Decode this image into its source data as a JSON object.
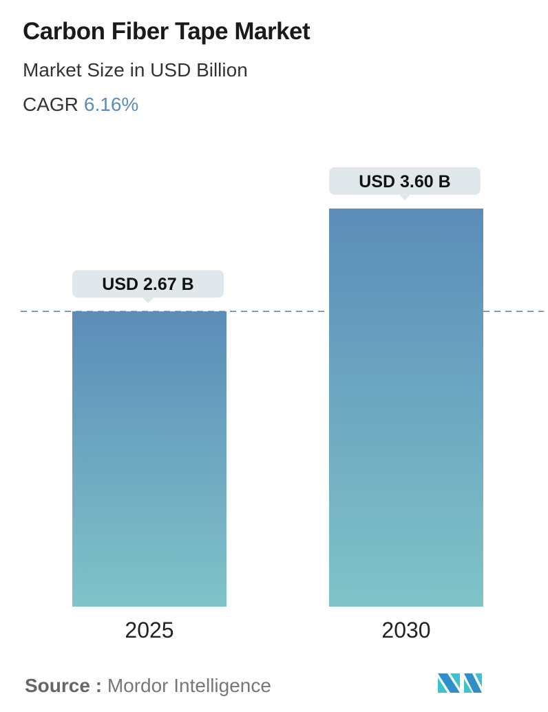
{
  "header": {
    "title": "Carbon Fiber Tape Market",
    "subtitle": "Market Size in USD Billion",
    "cagr_label": "CAGR",
    "cagr_value": "6.16%"
  },
  "chart_data": {
    "type": "bar",
    "categories": [
      "2025",
      "2030"
    ],
    "values": [
      2.67,
      3.6
    ],
    "data_labels": [
      "USD 2.67 B",
      "USD 3.60 B"
    ],
    "unit": "USD Billion",
    "reference_line": 2.67,
    "colors": {
      "bar_top": "#5b8db8",
      "bar_bottom": "#80c3c9",
      "callout": "#e1e8ec",
      "reference": "#5b7f99"
    }
  },
  "footer": {
    "source_label": "Source :",
    "source_value": "Mordor Intelligence",
    "logo_text": "MI"
  }
}
